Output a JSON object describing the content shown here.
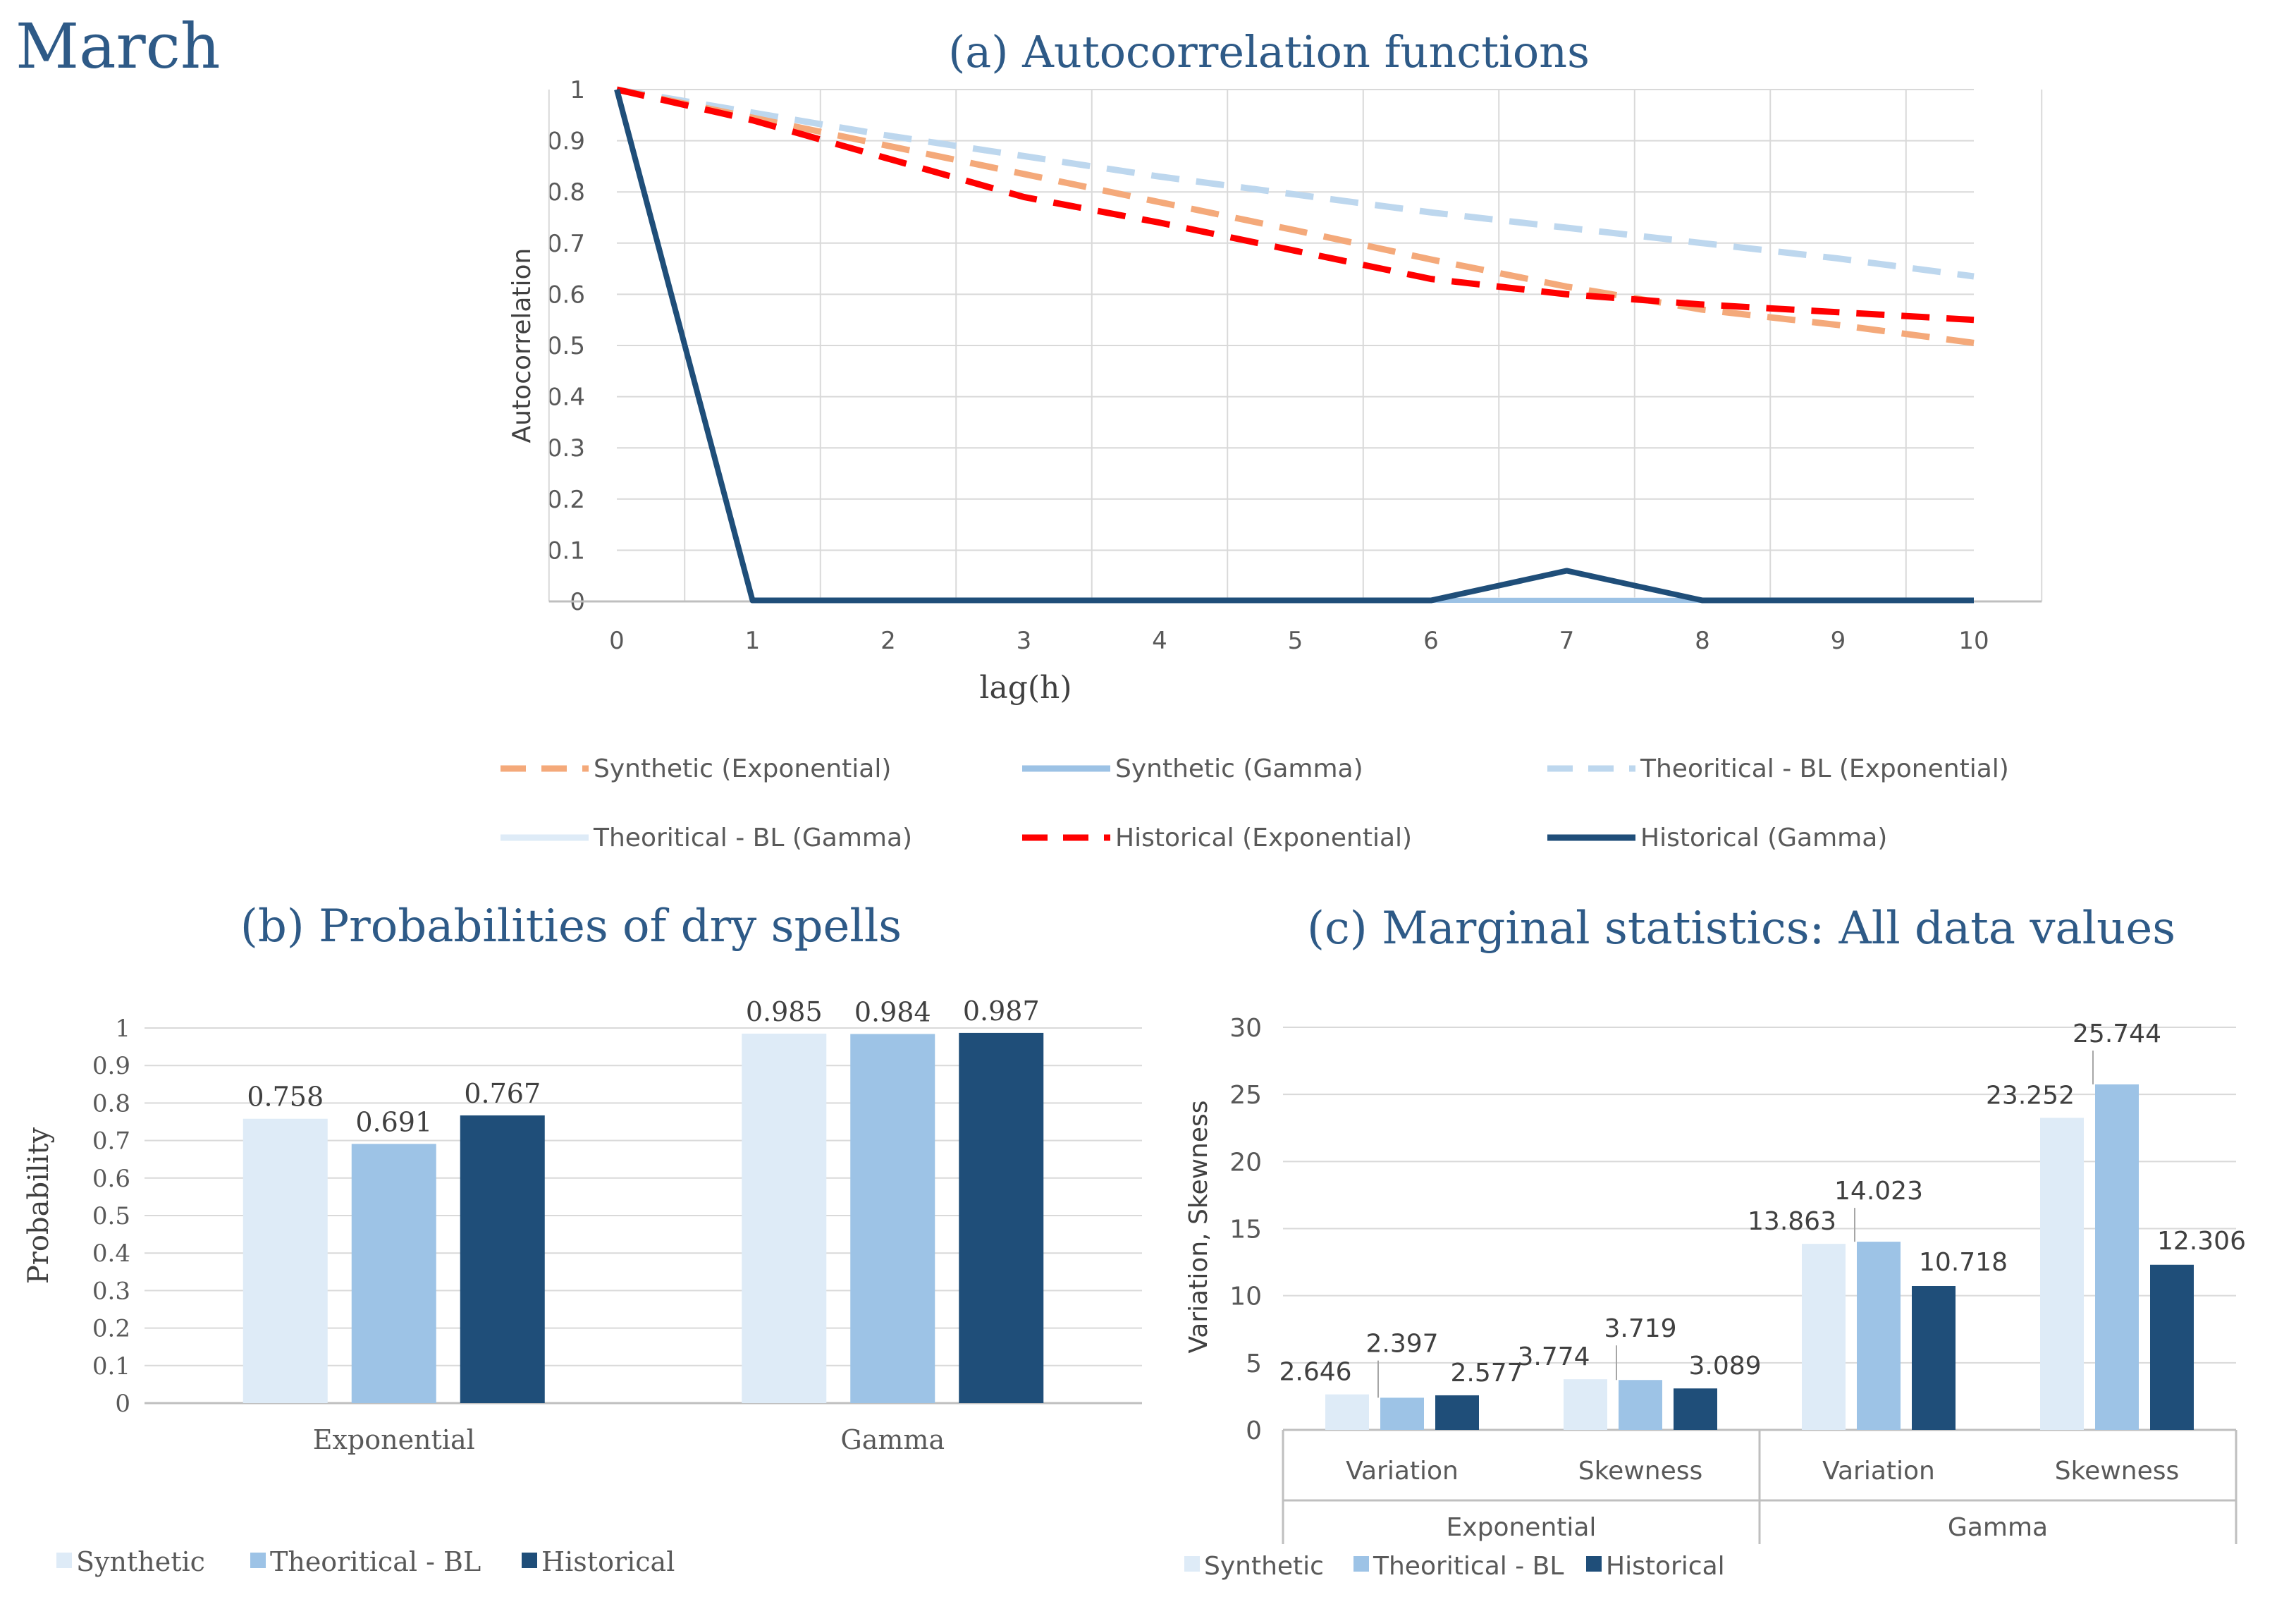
{
  "page_title": "March",
  "colors": {
    "title": "#2e5a87",
    "synthetic_exp": "#f4a97a",
    "synthetic_gamma": "#9cc2e5",
    "theo_exp": "#bdd7ee",
    "theo_gamma": "#deebf7",
    "hist_exp": "#ff0000",
    "hist_gamma": "#1f4e79",
    "bar_synthetic": "#deebf7",
    "bar_theo": "#9dc3e6",
    "bar_hist": "#1f4e79",
    "grid": "#d9d9d9",
    "axis_text": "#595959"
  },
  "chart_data": [
    {
      "id": "a",
      "type": "line",
      "title": "(a) Autocorrelation functions",
      "xlabel": "lag(h)",
      "ylabel": "Autocorrelation",
      "x": [
        0,
        1,
        2,
        3,
        4,
        5,
        6,
        7,
        8,
        9,
        10
      ],
      "ylim": [
        0,
        1
      ],
      "yticks": [
        "0",
        "0.1",
        "0.2",
        "0.3",
        "0.4",
        "0.5",
        "0.6",
        "0.7",
        "0.8",
        "0.9",
        "1"
      ],
      "xticks": [
        "0",
        "1",
        "2",
        "3",
        "4",
        "5",
        "6",
        "7",
        "8",
        "9",
        "10"
      ],
      "grid": true,
      "legend_position": "bottom",
      "series": [
        {
          "name": "Synthetic (Exponential)",
          "style": "dashed",
          "color": "#f4a97a",
          "values": [
            1.0,
            0.945,
            0.89,
            0.835,
            0.78,
            0.725,
            0.668,
            0.615,
            0.57,
            0.54,
            0.505
          ]
        },
        {
          "name": "Synthetic (Gamma)",
          "style": "solid",
          "color": "#9cc2e5",
          "values": [
            1.0,
            0.002,
            0.002,
            0.002,
            0.002,
            0.002,
            0.002,
            0.002,
            0.002,
            0.002,
            0.002
          ]
        },
        {
          "name": "Theoritical - BL (Exponential)",
          "style": "dashed",
          "color": "#bdd7ee",
          "values": [
            1.0,
            0.955,
            0.91,
            0.87,
            0.83,
            0.795,
            0.76,
            0.73,
            0.7,
            0.67,
            0.635
          ]
        },
        {
          "name": "Theoritical - BL (Gamma)",
          "style": "solid",
          "color": "#deebf7",
          "values": [
            1.0,
            0.003,
            0.003,
            0.003,
            0.003,
            0.003,
            0.003,
            0.003,
            0.003,
            0.003,
            0.003
          ]
        },
        {
          "name": "Historical (Exponential)",
          "style": "dashed",
          "color": "#ff0000",
          "values": [
            1.0,
            0.94,
            0.865,
            0.79,
            0.74,
            0.685,
            0.63,
            0.6,
            0.58,
            0.565,
            0.55
          ]
        },
        {
          "name": "Historical (Gamma)",
          "style": "solid",
          "color": "#1f4e79",
          "values": [
            1.0,
            0.002,
            0.002,
            0.002,
            0.002,
            0.002,
            0.002,
            0.06,
            0.002,
            0.002,
            0.002
          ]
        }
      ]
    },
    {
      "id": "b",
      "type": "bar",
      "title": "(b) Probabilities of dry spells",
      "ylabel": "Probability",
      "xlabel": "",
      "categories": [
        "Exponential",
        "Gamma"
      ],
      "ylim": [
        0,
        1
      ],
      "yticks": [
        "0",
        "0.1",
        "0.2",
        "0.3",
        "0.4",
        "0.5",
        "0.6",
        "0.7",
        "0.8",
        "0.9",
        "1"
      ],
      "grid": true,
      "legend_position": "bottom-left",
      "series": [
        {
          "name": "Synthetic",
          "color": "#deebf7",
          "values": [
            0.758,
            0.985
          ],
          "labels": [
            "0.758",
            "0.985"
          ]
        },
        {
          "name": "Theoritical - BL",
          "color": "#9dc3e6",
          "values": [
            0.691,
            0.984
          ],
          "labels": [
            "0.691",
            "0.984"
          ]
        },
        {
          "name": "Historical",
          "color": "#1f4e79",
          "values": [
            0.767,
            0.987
          ],
          "labels": [
            "0.767",
            "0.987"
          ]
        }
      ]
    },
    {
      "id": "c",
      "type": "bar",
      "title": "(c) Marginal statistics: All data values",
      "ylabel": "Variation, Skewness",
      "xlabel": "",
      "groups": [
        "Exponential",
        "Gamma"
      ],
      "categories": [
        "Variation",
        "Skewness",
        "Variation",
        "Skewness"
      ],
      "ylim": [
        0,
        30
      ],
      "yticks": [
        "0",
        "5",
        "10",
        "15",
        "20",
        "25",
        "30"
      ],
      "grid": true,
      "legend_position": "bottom",
      "series": [
        {
          "name": "Synthetic",
          "color": "#deebf7",
          "values": [
            2.646,
            3.774,
            13.863,
            23.252
          ],
          "labels": [
            "2.646",
            "3.774",
            "13.863",
            "23.252"
          ]
        },
        {
          "name": "Theoritical - BL",
          "color": "#9dc3e6",
          "values": [
            2.397,
            3.719,
            14.023,
            25.744
          ],
          "labels": [
            "2.397",
            "3.719",
            "14.023",
            "25.744"
          ]
        },
        {
          "name": "Historical",
          "color": "#1f4e79",
          "values": [
            2.577,
            3.089,
            10.718,
            12.306
          ],
          "labels": [
            "2.577",
            "3.089",
            "10.718",
            "12.306"
          ]
        }
      ]
    }
  ]
}
